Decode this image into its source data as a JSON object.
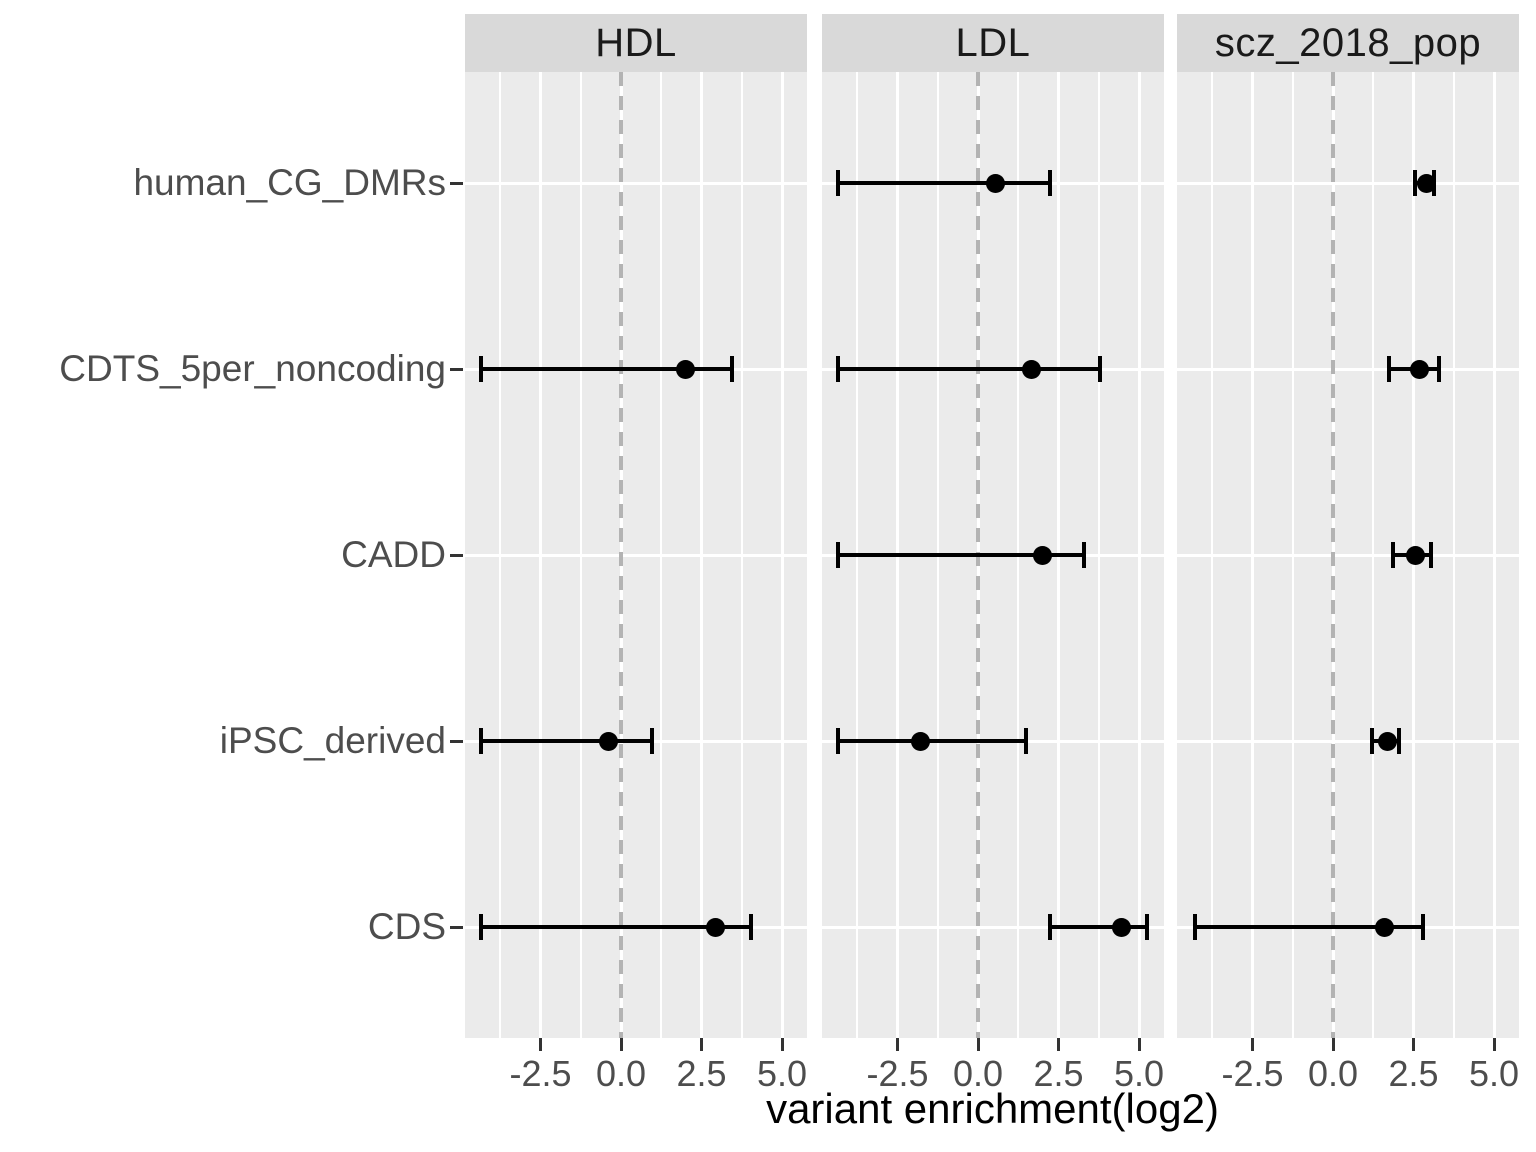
{
  "chart_data": {
    "type": "pointrange",
    "title": "",
    "xlabel": "variant enrichment(log2)",
    "categories_top_to_bottom": [
      "human_CG_DMRs",
      "CDTS_5per_noncoding",
      "CADD",
      "iPSC_derived",
      "CDS"
    ],
    "x_ticks": [
      -2.5,
      0,
      2.5,
      5
    ],
    "x_tick_labels": [
      "-2.5",
      "0.0",
      "2.5",
      "5.0"
    ],
    "xlim": [
      -4.85,
      5.85
    ],
    "grid": "on",
    "legend": "none",
    "reference_line": {
      "x": 0,
      "style": "dashed"
    },
    "facets": [
      {
        "name": "HDL",
        "points": [
          null,
          {
            "est": 2.0,
            "lo": -4.35,
            "hi": 3.45
          },
          null,
          {
            "est": -0.4,
            "lo": -4.35,
            "hi": 0.95
          },
          {
            "est": 2.95,
            "lo": -4.35,
            "hi": 4.05
          }
        ]
      },
      {
        "name": "LDL",
        "points": [
          {
            "est": 0.55,
            "lo": -4.35,
            "hi": 2.25
          },
          {
            "est": 1.65,
            "lo": -4.35,
            "hi": 3.8
          },
          {
            "est": 2.0,
            "lo": -4.35,
            "hi": 3.3
          },
          {
            "est": -1.8,
            "lo": -4.35,
            "hi": 1.5
          },
          {
            "est": 4.45,
            "lo": 2.25,
            "hi": 5.25
          }
        ]
      },
      {
        "name": "scz_2018_pop",
        "points": [
          {
            "est": 2.9,
            "lo": 2.55,
            "hi": 3.15
          },
          {
            "est": 2.7,
            "lo": 1.75,
            "hi": 3.3
          },
          {
            "est": 2.55,
            "lo": 1.85,
            "hi": 3.05
          },
          {
            "est": 1.7,
            "lo": 1.2,
            "hi": 2.05
          },
          {
            "est": 1.6,
            "lo": -4.3,
            "hi": 2.8
          }
        ]
      }
    ],
    "colors": {
      "panel_bg": "#ebebeb",
      "strip_bg": "#d9d9d9",
      "grid": "#ffffff",
      "ref_line": "#b3b3b3",
      "marker": "#000000",
      "tick_mark": "#333333",
      "axis_text": "#4d4d4d",
      "strip_text": "#1a1a1a",
      "title_text": "#000000"
    }
  }
}
